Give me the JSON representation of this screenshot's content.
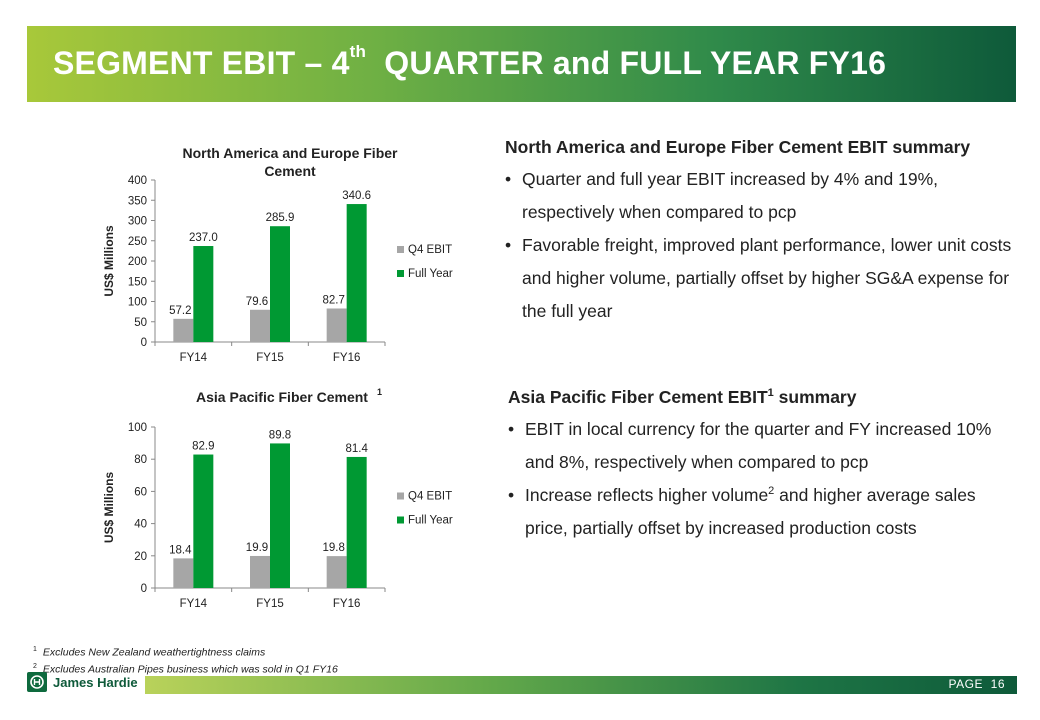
{
  "header": {
    "title_before": "SEGMENT EBIT – 4",
    "title_sup": "th",
    "title_after": "  QUARTER and FULL YEAR FY16"
  },
  "colors": {
    "q4": "#a6a6a6",
    "full_year": "#009933",
    "brand": "#0e5a3a"
  },
  "chart_data": [
    {
      "type": "bar",
      "title": "North America and Europe Fiber Cement",
      "title_sup": "",
      "ylabel": "US$ Millions",
      "ylim": [
        0,
        400
      ],
      "yticks": [
        0,
        50,
        100,
        150,
        200,
        250,
        300,
        350,
        400
      ],
      "categories": [
        "FY14",
        "FY15",
        "FY16"
      ],
      "series": [
        {
          "name": "Q4 EBIT",
          "values": [
            57.2,
            79.6,
            82.7
          ],
          "labels": [
            "57.2",
            "79.6",
            "82.7"
          ],
          "color": "#a6a6a6"
        },
        {
          "name": "Full Year",
          "values": [
            237.0,
            285.9,
            340.6
          ],
          "labels": [
            "237.0",
            "285.9",
            "340.6"
          ],
          "color": "#009933"
        }
      ],
      "legend": "right",
      "grid": false
    },
    {
      "type": "bar",
      "title": "Asia Pacific Fiber Cement",
      "title_sup": "1",
      "ylabel": "US$ Millions",
      "ylim": [
        0,
        100
      ],
      "yticks": [
        0,
        20,
        40,
        60,
        80,
        100
      ],
      "categories": [
        "FY14",
        "FY15",
        "FY16"
      ],
      "series": [
        {
          "name": "Q4 EBIT",
          "values": [
            18.4,
            19.9,
            19.8
          ],
          "labels": [
            "18.4",
            "19.9",
            "19.8"
          ],
          "color": "#a6a6a6"
        },
        {
          "name": "Full Year",
          "values": [
            82.9,
            89.8,
            81.4
          ],
          "labels": [
            "82.9",
            "89.8",
            "81.4"
          ],
          "color": "#009933"
        }
      ],
      "legend": "right",
      "grid": false
    }
  ],
  "summary_na": {
    "heading": "North America and Europe Fiber Cement EBIT summary",
    "bullets": [
      "Quarter and full year EBIT increased by 4% and 19%, respectively when compared to pcp",
      "Favorable freight, improved plant performance, lower unit costs and higher volume, partially offset by higher SG&A expense for the full year"
    ]
  },
  "summary_ap": {
    "heading_before": "Asia Pacific Fiber Cement EBIT",
    "heading_sup": "1",
    "heading_after": " summary",
    "bullet1": "EBIT in local currency for the quarter and FY increased 10% and 8%, respectively when compared to pcp",
    "bullet2_before": "Increase reflects higher volume",
    "bullet2_sup": "2",
    "bullet2_after": " and higher average sales price, partially offset by increased production costs"
  },
  "footnotes": [
    {
      "num": "1",
      "text": "Excludes New Zealand weathertightness claims"
    },
    {
      "num": "2",
      "text": "Excludes Australian Pipes business which was sold in Q1 FY16"
    }
  ],
  "footer": {
    "logo_text": "James Hardie",
    "page_label": "PAGE  16"
  }
}
